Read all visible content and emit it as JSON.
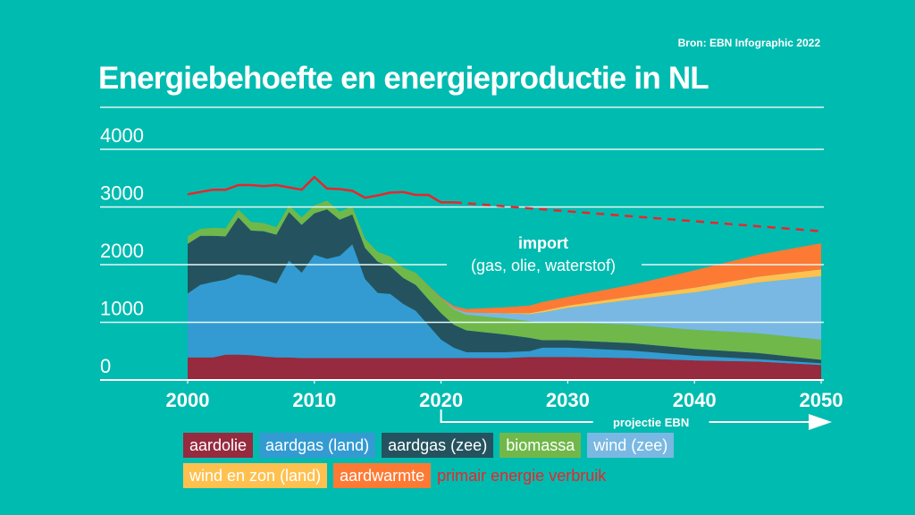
{
  "source": "Bron: EBN Infographic 2022",
  "title": "Energiebehoefte en energieproductie in NL",
  "chart_data": {
    "type": "area",
    "stacked": true,
    "title": "Energiebehoefte en energieproductie in NL",
    "xlabel": "",
    "ylabel": "",
    "xlim": [
      2000,
      2050
    ],
    "ylim": [
      0,
      4000
    ],
    "x_ticks": [
      "2000",
      "2010",
      "2020",
      "2030",
      "2040",
      "2050"
    ],
    "y_ticks": [
      "0",
      "1000",
      "2000",
      "3000",
      "4000"
    ],
    "grid": true,
    "annotations": {
      "import_title": "import",
      "import_subtitle": "(gas, olie, waterstof)",
      "projection_label": "projectie EBN",
      "projection_start": 2020,
      "projection_end": 2050
    },
    "x": [
      2000,
      2001,
      2002,
      2003,
      2004,
      2005,
      2006,
      2007,
      2008,
      2009,
      2010,
      2011,
      2012,
      2013,
      2014,
      2015,
      2016,
      2017,
      2018,
      2019,
      2020,
      2021,
      2022,
      2025,
      2027,
      2028,
      2030,
      2035,
      2040,
      2045,
      2050
    ],
    "series": [
      {
        "name": "aardolie",
        "color": "#962a3e",
        "values": [
          390,
          390,
          390,
          440,
          440,
          430,
          410,
          390,
          390,
          380,
          380,
          380,
          380,
          380,
          380,
          380,
          380,
          380,
          380,
          380,
          380,
          380,
          380,
          380,
          400,
          400,
          400,
          380,
          340,
          320,
          260
        ]
      },
      {
        "name": "aardgas (land)",
        "color": "#339bd2",
        "values": [
          1110,
          1260,
          1310,
          1300,
          1390,
          1380,
          1330,
          1280,
          1680,
          1480,
          1790,
          1720,
          1770,
          1970,
          1370,
          1130,
          1110,
          940,
          820,
          570,
          320,
          180,
          100,
          100,
          100,
          160,
          160,
          130,
          80,
          40,
          30
        ]
      },
      {
        "name": "aardgas (zee)",
        "color": "#24535f",
        "values": [
          860,
          850,
          800,
          750,
          990,
          780,
          840,
          850,
          840,
          830,
          720,
          860,
          630,
          520,
          540,
          540,
          480,
          450,
          450,
          450,
          460,
          400,
          380,
          310,
          230,
          130,
          130,
          130,
          120,
          110,
          60
        ]
      },
      {
        "name": "biomassa",
        "color": "#71b84a",
        "values": [
          130,
          120,
          140,
          140,
          140,
          150,
          140,
          130,
          120,
          130,
          140,
          150,
          140,
          140,
          160,
          170,
          170,
          180,
          210,
          230,
          250,
          260,
          270,
          280,
          290,
          300,
          310,
          320,
          330,
          340,
          350
        ]
      },
      {
        "name": "wind (zee)",
        "color": "#79b8e3",
        "values": [
          0,
          0,
          0,
          0,
          0,
          0,
          0,
          0,
          0,
          0,
          0,
          0,
          0,
          0,
          0,
          0,
          0,
          0,
          0,
          0,
          0,
          20,
          40,
          80,
          120,
          180,
          250,
          430,
          650,
          880,
          1100
        ]
      },
      {
        "name": "wind en zon (land)",
        "color": "#fec150",
        "values": [
          0,
          0,
          0,
          0,
          0,
          0,
          0,
          0,
          0,
          0,
          0,
          0,
          0,
          0,
          0,
          0,
          0,
          0,
          0,
          0,
          0,
          0,
          0,
          10,
          20,
          30,
          40,
          60,
          80,
          100,
          120
        ]
      },
      {
        "name": "aardwarmte",
        "color": "#fd7a35",
        "values": [
          0,
          0,
          0,
          0,
          0,
          0,
          0,
          0,
          0,
          0,
          0,
          0,
          0,
          0,
          0,
          0,
          0,
          0,
          0,
          10,
          20,
          40,
          60,
          100,
          130,
          150,
          150,
          200,
          300,
          380,
          450
        ]
      }
    ],
    "line_series": {
      "name": "primair energie verbruik",
      "color": "#e8262b",
      "x": [
        2000,
        2001,
        2002,
        2003,
        2004,
        2005,
        2006,
        2007,
        2008,
        2009,
        2010,
        2011,
        2012,
        2013,
        2014,
        2015,
        2016,
        2017,
        2018,
        2019,
        2020,
        2021,
        2050
      ],
      "values": [
        3220,
        3260,
        3300,
        3300,
        3380,
        3380,
        3360,
        3380,
        3340,
        3300,
        3520,
        3320,
        3310,
        3280,
        3160,
        3200,
        3250,
        3260,
        3210,
        3210,
        3080,
        3080,
        2580
      ],
      "projected_from": 2021
    },
    "legend": {
      "placement": "bottom",
      "items": [
        "aardolie",
        "aardgas (land)",
        "aardgas (zee)",
        "biomassa",
        "wind (zee)",
        "wind en zon (land)",
        "aardwarmte",
        "primair energie verbruik"
      ]
    }
  }
}
